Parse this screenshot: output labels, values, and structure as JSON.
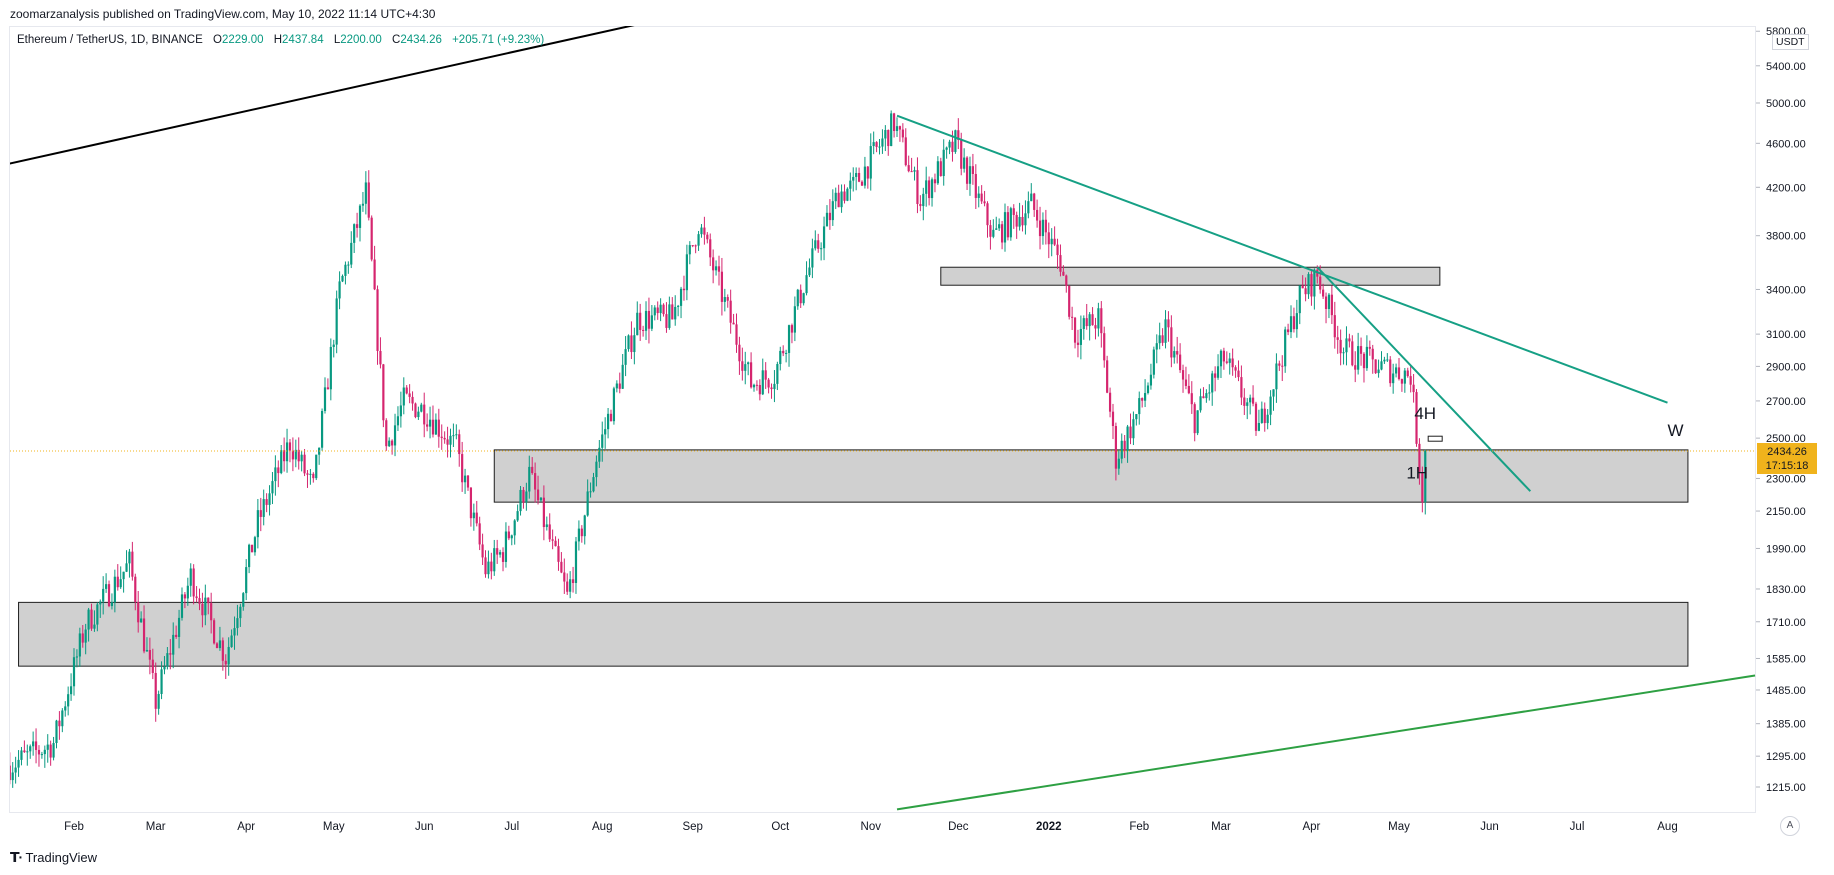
{
  "header": {
    "published_text": "zoomarzanalysis published on TradingView.com, May 10, 2022 11:14 UTC+4:30"
  },
  "legend": {
    "symbol": "Ethereum / TetherUS, 1D, BINANCE",
    "open_label": "O",
    "open": "2229.00",
    "high_label": "H",
    "high": "2437.84",
    "low_label": "L",
    "low": "2200.00",
    "close_label": "C",
    "close": "2434.26",
    "change": "+205.71 (+9.23%)"
  },
  "price_axis": {
    "currency": "USDT",
    "ticks": [
      "5800.00",
      "5400.00",
      "5000.00",
      "4600.00",
      "4200.00",
      "3800.00",
      "3400.00",
      "3100.00",
      "2900.00",
      "2700.00",
      "2500.00",
      "2300.00",
      "2150.00",
      "1990.00",
      "1830.00",
      "1710.00",
      "1585.00",
      "1485.00",
      "1385.00",
      "1295.00",
      "1215.00"
    ]
  },
  "current_price": {
    "value": "2434.26",
    "countdown": "17:15:18",
    "color": "#f0b31c"
  },
  "time_axis": {
    "labels": [
      "Feb",
      "Mar",
      "Apr",
      "May",
      "Jun",
      "Jul",
      "Aug",
      "Sep",
      "Oct",
      "Nov",
      "Dec",
      "2022",
      "Feb",
      "Mar",
      "Apr",
      "May",
      "Jun",
      "Jul",
      "Aug"
    ]
  },
  "annotations": [
    {
      "text": "4H",
      "target": "2022-05-09"
    },
    {
      "text": "1H",
      "target": "2022-05-09"
    },
    {
      "text": "W",
      "target": "2022-08-01"
    }
  ],
  "chart_data": {
    "type": "candlestick",
    "title": "Ethereum / TetherUS, 1D, BINANCE",
    "scale": "log",
    "x_range": [
      "2021-01-08",
      "2022-08-31"
    ],
    "y_range": [
      1160,
      5850
    ],
    "grid": false,
    "up_color": "#089981",
    "down_color": "#d5256e",
    "anchor_points": [
      {
        "date": "2021-01-10",
        "price": 1270
      },
      {
        "date": "2021-01-25",
        "price": 1330
      },
      {
        "date": "2021-02-05",
        "price": 1700
      },
      {
        "date": "2021-02-20",
        "price": 1930
      },
      {
        "date": "2021-03-01",
        "price": 1450
      },
      {
        "date": "2021-03-13",
        "price": 1880
      },
      {
        "date": "2021-03-25",
        "price": 1590
      },
      {
        "date": "2021-04-05",
        "price": 2100
      },
      {
        "date": "2021-04-16",
        "price": 2480
      },
      {
        "date": "2021-04-24",
        "price": 2250
      },
      {
        "date": "2021-05-03",
        "price": 3400
      },
      {
        "date": "2021-05-12",
        "price": 4150
      },
      {
        "date": "2021-05-19",
        "price": 2450
      },
      {
        "date": "2021-05-25",
        "price": 2700
      },
      {
        "date": "2021-06-01",
        "price": 2650
      },
      {
        "date": "2021-06-12",
        "price": 2450
      },
      {
        "date": "2021-06-22",
        "price": 1900
      },
      {
        "date": "2021-06-28",
        "price": 1980
      },
      {
        "date": "2021-07-07",
        "price": 2320
      },
      {
        "date": "2021-07-20",
        "price": 1800
      },
      {
        "date": "2021-07-30",
        "price": 2400
      },
      {
        "date": "2021-08-13",
        "price": 3200
      },
      {
        "date": "2021-08-25",
        "price": 3200
      },
      {
        "date": "2021-09-03",
        "price": 3900
      },
      {
        "date": "2021-09-21",
        "price": 2800
      },
      {
        "date": "2021-09-29",
        "price": 2850
      },
      {
        "date": "2021-10-10",
        "price": 3500
      },
      {
        "date": "2021-10-21",
        "price": 4150
      },
      {
        "date": "2021-10-26",
        "price": 4200
      },
      {
        "date": "2021-11-09",
        "price": 4800
      },
      {
        "date": "2021-11-18",
        "price": 4100
      },
      {
        "date": "2021-11-30",
        "price": 4600
      },
      {
        "date": "2021-12-13",
        "price": 3800
      },
      {
        "date": "2021-12-26",
        "price": 4050
      },
      {
        "date": "2022-01-05",
        "price": 3600
      },
      {
        "date": "2022-01-10",
        "price": 3100
      },
      {
        "date": "2022-01-18",
        "price": 3200
      },
      {
        "date": "2022-01-24",
        "price": 2400
      },
      {
        "date": "2022-02-01",
        "price": 2650
      },
      {
        "date": "2022-02-10",
        "price": 3150
      },
      {
        "date": "2022-02-20",
        "price": 2600
      },
      {
        "date": "2022-03-02",
        "price": 2950
      },
      {
        "date": "2022-03-14",
        "price": 2550
      },
      {
        "date": "2022-03-28",
        "price": 3350
      },
      {
        "date": "2022-04-03",
        "price": 3500
      },
      {
        "date": "2022-04-12",
        "price": 3000
      },
      {
        "date": "2022-04-24",
        "price": 2900
      },
      {
        "date": "2022-05-05",
        "price": 2850
      },
      {
        "date": "2022-05-09",
        "price": 2229
      },
      {
        "date": "2022-05-10",
        "price": 2434.26
      }
    ],
    "zones": [
      {
        "from": "2021-11-25",
        "to": "2022-05-15",
        "low": 3430,
        "high": 3560
      },
      {
        "from": "2021-06-25",
        "to": "2022-08-08",
        "low": 2190,
        "high": 2440
      },
      {
        "from": "2021-01-13",
        "to": "2022-08-08",
        "low": 1560,
        "high": 1780
      }
    ],
    "trendlines": [
      {
        "from_date": "2021-11-10",
        "from_price": 4870,
        "to_date": "2022-08-01",
        "to_price": 2690,
        "color": "#16a085"
      },
      {
        "from_date": "2022-04-03",
        "from_price": 3560,
        "to_date": "2022-06-15",
        "to_price": 2240,
        "color": "#16a085"
      },
      {
        "from_date": "2021-01-08",
        "from_price": 4400,
        "to_date": "2021-10-15",
        "to_price": 6400,
        "color": "#000000"
      },
      {
        "from_date": "2021-11-10",
        "from_price": 1160,
        "to_date": "2022-08-31",
        "to_price": 1530,
        "color": "#2ea043"
      }
    ],
    "last_price": 2434.26,
    "ohlc_last": {
      "open": 2229.0,
      "high": 2437.84,
      "low": 2200.0,
      "close": 2434.26,
      "change": 205.71,
      "change_pct": 9.23
    }
  }
}
